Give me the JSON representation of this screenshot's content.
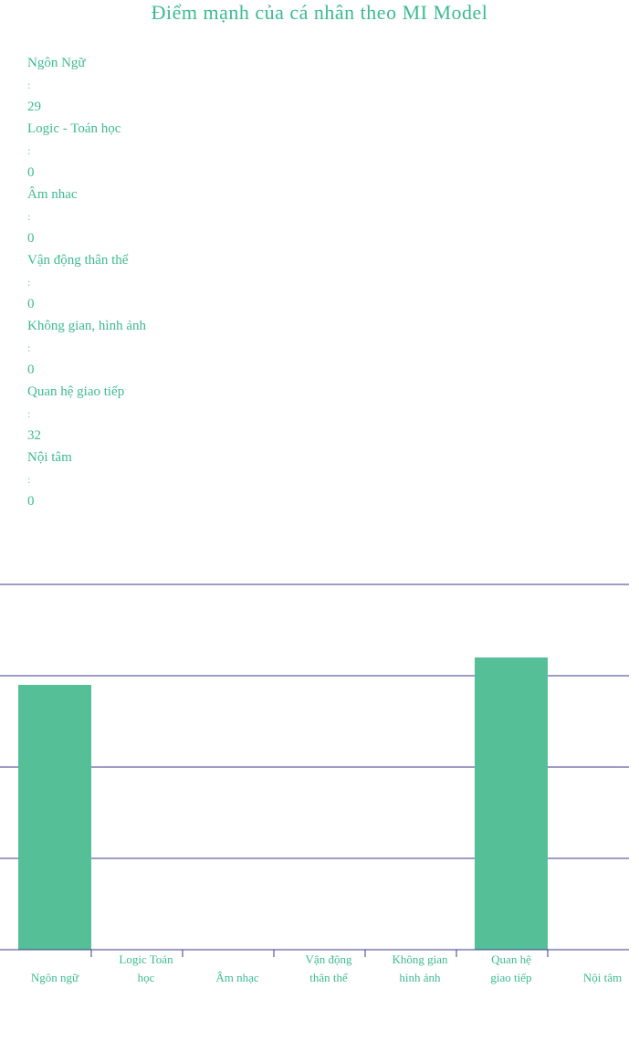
{
  "title": "Điểm mạnh của cá nhân theo MI Model",
  "scores": [
    {
      "label": "Ngôn Ngữ",
      "separator": ":",
      "value": "29"
    },
    {
      "label": "Logic - Toán học",
      "separator": ":",
      "value": "0"
    },
    {
      "label": "Âm nhac",
      "separator": ":",
      "value": "0"
    },
    {
      "label": "Vận động thân thể",
      "separator": ":",
      "value": "0"
    },
    {
      "label": "Không gian, hình ảnh",
      "separator": ":",
      "value": "0"
    },
    {
      "label": "Quan hệ giao tiếp",
      "separator": ":",
      "value": "32"
    },
    {
      "label": "Nội tâm",
      "separator": ":",
      "value": "0"
    }
  ],
  "chart_data": {
    "type": "bar",
    "categories": [
      [
        "Ngôn ngữ"
      ],
      [
        "Logic Toán",
        "học"
      ],
      [
        "Âm nhạc"
      ],
      [
        "Vận động",
        "thân thể"
      ],
      [
        "Không gian",
        "hình ảnh"
      ],
      [
        "Quan hệ",
        "giao tiếp"
      ],
      [
        "Nội tâm"
      ]
    ],
    "values": [
      29,
      0,
      0,
      0,
      0,
      32,
      0
    ],
    "ylim": [
      0,
      40
    ],
    "grid": true,
    "gridlines": [
      10,
      20,
      30,
      40
    ],
    "bar_color": "#55bf97",
    "grid_color": "#3c3a8c",
    "label_color": "#3dbb8f"
  }
}
